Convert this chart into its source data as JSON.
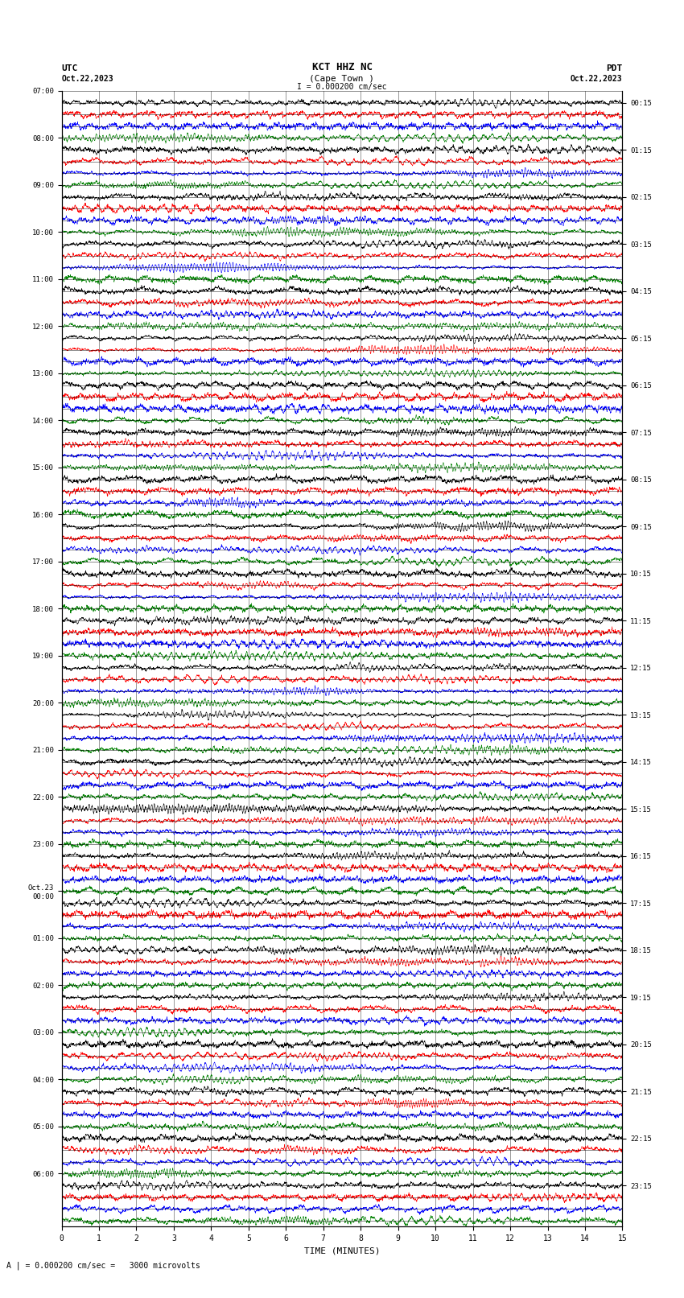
{
  "title_line1": "KCT HHZ NC",
  "title_line2": "(Cape Town )",
  "scale_text": "I = 0.000200 cm/sec",
  "left_label": "UTC",
  "left_date": "Oct.22,2023",
  "right_label": "PDT",
  "right_date": "Oct.22,2023",
  "bottom_label": "TIME (MINUTES)",
  "scale_annotation": "A | = 0.000200 cm/sec =   3000 microvolts",
  "left_times": [
    "07:00",
    "08:00",
    "09:00",
    "10:00",
    "11:00",
    "12:00",
    "13:00",
    "14:00",
    "15:00",
    "16:00",
    "17:00",
    "18:00",
    "19:00",
    "20:00",
    "21:00",
    "22:00",
    "23:00",
    "Oct.23\n00:00",
    "01:00",
    "02:00",
    "03:00",
    "04:00",
    "05:00",
    "06:00"
  ],
  "right_times": [
    "00:15",
    "01:15",
    "02:15",
    "03:15",
    "04:15",
    "05:15",
    "06:15",
    "07:15",
    "08:15",
    "09:15",
    "10:15",
    "11:15",
    "12:15",
    "13:15",
    "14:15",
    "15:15",
    "16:15",
    "17:15",
    "18:15",
    "19:15",
    "20:15",
    "21:15",
    "22:15",
    "23:15"
  ],
  "n_rows": 96,
  "n_cols": 3000,
  "colors_cycle": [
    "black",
    "red",
    "blue",
    "green"
  ],
  "amplitude": 0.48,
  "x_min": 0,
  "x_max": 15,
  "x_ticks": [
    0,
    1,
    2,
    3,
    4,
    5,
    6,
    7,
    8,
    9,
    10,
    11,
    12,
    13,
    14,
    15
  ],
  "fig_width": 8.5,
  "fig_height": 16.13,
  "bg_color": "white",
  "trace_lw": 0.4
}
